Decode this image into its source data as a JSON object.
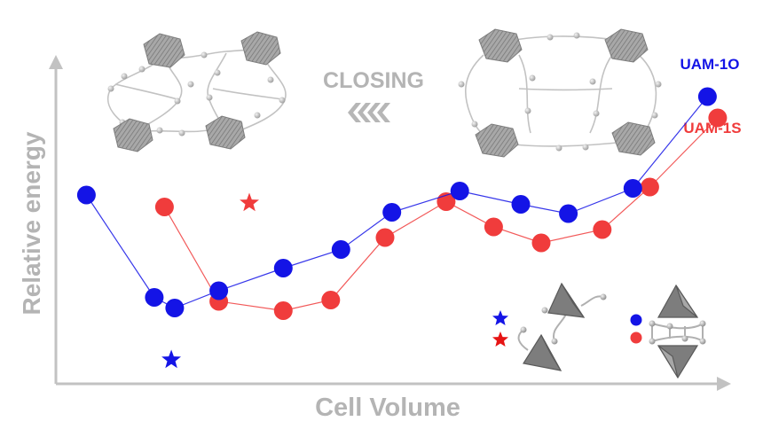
{
  "chart_data": {
    "type": "line",
    "xlabel": "Cell Volume",
    "ylabel": "Relative energy",
    "annotation": "CLOSING",
    "grid": false,
    "legend": "right",
    "xlim": [
      0,
      100
    ],
    "ylim": [
      0,
      100
    ],
    "series": [
      {
        "name": "UAM-1O",
        "color": "#1414e6",
        "x": [
          4.5,
          14.5,
          17.5,
          24.0,
          33.5,
          42.0,
          49.5,
          59.5,
          68.5,
          75.5,
          85.0,
          96.0
        ],
        "y": [
          71.0,
          32.5,
          28.5,
          35.0,
          43.5,
          50.5,
          64.5,
          72.5,
          67.5,
          64.0,
          73.5,
          108.0
        ]
      },
      {
        "name": "UAM-1S",
        "color": "#f03c3c",
        "x": [
          16.0,
          24.0,
          33.5,
          40.5,
          48.5,
          57.5,
          64.5,
          71.5,
          80.5,
          87.5,
          97.5
        ],
        "y": [
          66.5,
          31.0,
          27.5,
          31.5,
          55.0,
          68.5,
          59.0,
          53.0,
          58.0,
          74.0,
          100.0
        ]
      }
    ],
    "markers": [
      {
        "series": "UAM-1O",
        "shape": "star",
        "x": 17.0,
        "y": 9.0
      },
      {
        "series": "UAM-1S",
        "shape": "star",
        "x": 28.5,
        "y": 68.0
      }
    ]
  }
}
